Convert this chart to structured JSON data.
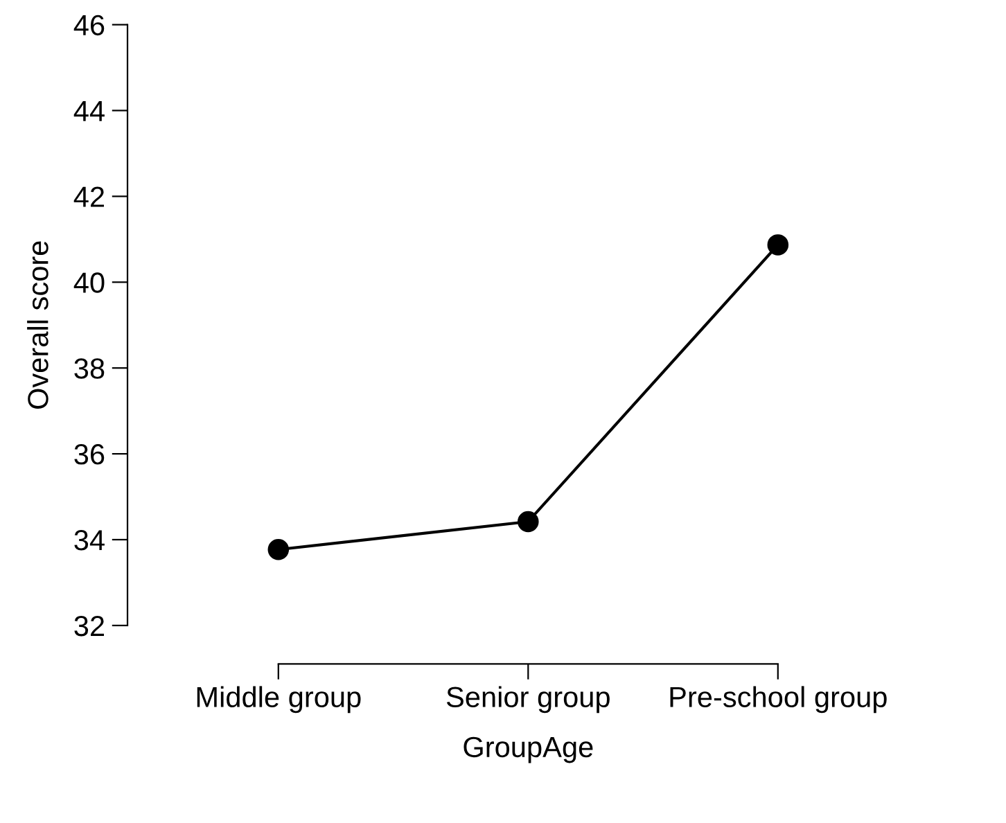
{
  "chart_data": {
    "type": "line",
    "xlabel": "GroupAge",
    "ylabel": "Overall score",
    "categories": [
      "Middle group",
      "Senior group",
      "Pre-school group"
    ],
    "series": [
      {
        "color": "#000000",
        "values": [
          33.77,
          34.42,
          40.87
        ]
      }
    ],
    "ylim": [
      32,
      46
    ],
    "yticks": [
      32,
      34,
      36,
      38,
      40,
      42,
      44,
      46
    ],
    "marker": "circle",
    "line_style": "solid",
    "grid": false,
    "legend": false
  }
}
